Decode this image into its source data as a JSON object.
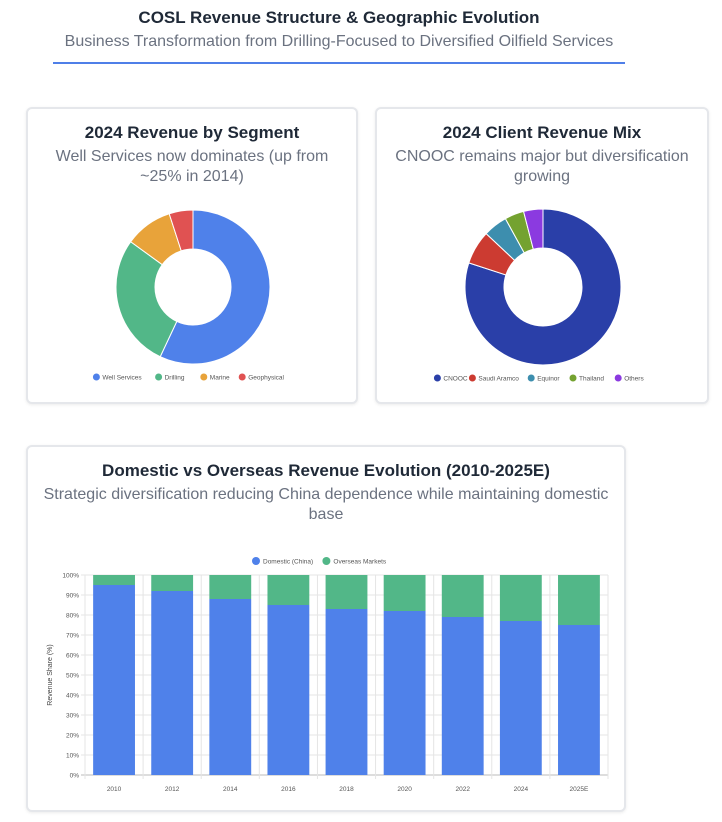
{
  "header": {
    "title": "COSL Revenue Structure & Geographic Evolution",
    "subtitle": "Business Transformation from Drilling-Focused to Diversified Oilfield Services"
  },
  "chart_data": [
    {
      "type": "pie",
      "title": "2024 Revenue by Segment",
      "subtitle": "Well Services now dominates (up from ~25% in 2014)",
      "categories": [
        "Well Services",
        "Drilling",
        "Marine",
        "Geophysical"
      ],
      "values": [
        57,
        28,
        10,
        5
      ],
      "colors": [
        "#4f81ea",
        "#52b788",
        "#e8a33a",
        "#e05252"
      ],
      "legend": "bottom"
    },
    {
      "type": "pie",
      "title": "2024 Client Revenue Mix",
      "subtitle": "CNOOC remains major but diversification growing",
      "categories": [
        "CNOOC",
        "Saudi Aramco",
        "Equinor",
        "Thailand",
        "Others"
      ],
      "values": [
        80,
        7,
        5,
        4,
        4
      ],
      "colors": [
        "#2a3fa8",
        "#cc3b31",
        "#3d8eae",
        "#74a230",
        "#8b3ae0"
      ],
      "legend": "bottom"
    },
    {
      "type": "bar",
      "stacked": true,
      "title": "Domestic vs Overseas Revenue Evolution (2010-2025E)",
      "subtitle": "Strategic diversification reducing China dependence while maintaining domestic base",
      "categories": [
        "2010",
        "2012",
        "2014",
        "2016",
        "2018",
        "2020",
        "2022",
        "2024",
        "2025E"
      ],
      "series": [
        {
          "name": "Domestic (China)",
          "color": "#4f81ea",
          "values": [
            95,
            92,
            88,
            85,
            83,
            82,
            79,
            77,
            75
          ]
        },
        {
          "name": "Overseas Markets",
          "color": "#52b788",
          "values": [
            5,
            8,
            12,
            15,
            17,
            18,
            21,
            23,
            25
          ]
        }
      ],
      "ylabel": "Revenue Share (%)",
      "ylim": [
        0,
        100
      ],
      "yticks": [
        "0%",
        "10%",
        "20%",
        "30%",
        "40%",
        "50%",
        "60%",
        "70%",
        "80%",
        "90%",
        "100%"
      ],
      "legend": "top",
      "grid": true
    }
  ]
}
